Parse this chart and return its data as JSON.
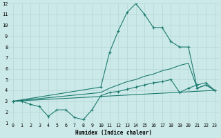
{
  "xlabel": "Humidex (Indice chaleur)",
  "xlim": [
    -0.5,
    23.5
  ],
  "ylim": [
    1,
    12
  ],
  "yticks": [
    1,
    2,
    3,
    4,
    5,
    6,
    7,
    8,
    9,
    10,
    11,
    12
  ],
  "xticks": [
    0,
    1,
    2,
    3,
    4,
    5,
    6,
    7,
    8,
    9,
    10,
    11,
    12,
    13,
    14,
    15,
    16,
    17,
    18,
    19,
    20,
    21,
    22,
    23
  ],
  "bg_color": "#cce9e9",
  "line_color": "#1a7a6e",
  "grid_color": "#b8d8d8",
  "lines": [
    {
      "x": [
        0,
        1,
        2,
        3,
        4,
        5,
        6,
        7,
        8,
        9,
        10,
        11,
        12,
        13,
        14,
        15,
        16,
        17,
        18,
        19,
        20,
        21,
        22,
        23
      ],
      "y": [
        3,
        3,
        2.7,
        2.5,
        1.6,
        2.2,
        2.2,
        1.5,
        1.3,
        2.2,
        3.5,
        3.8,
        3.9,
        4.1,
        4.3,
        4.5,
        4.7,
        4.8,
        5.0,
        3.8,
        4.2,
        4.5,
        4.7,
        4.0
      ],
      "marker": true
    },
    {
      "x": [
        0,
        10,
        11,
        12,
        13,
        14,
        15,
        16,
        17,
        18,
        19,
        20,
        21,
        22,
        23
      ],
      "y": [
        3,
        4.3,
        7.5,
        9.5,
        11.2,
        12,
        11,
        9.8,
        9.8,
        8.5,
        8.0,
        8.0,
        4.2,
        4.5,
        4.0
      ],
      "marker": true
    },
    {
      "x": [
        0,
        10,
        11,
        12,
        13,
        14,
        15,
        16,
        17,
        18,
        19,
        20,
        21,
        22,
        23
      ],
      "y": [
        3,
        3.8,
        4.2,
        4.5,
        4.8,
        5.0,
        5.3,
        5.5,
        5.8,
        6.0,
        6.3,
        6.5,
        4.2,
        4.5,
        4.0
      ],
      "marker": false
    },
    {
      "x": [
        0,
        23
      ],
      "y": [
        3.0,
        4.0
      ],
      "marker": false
    }
  ]
}
